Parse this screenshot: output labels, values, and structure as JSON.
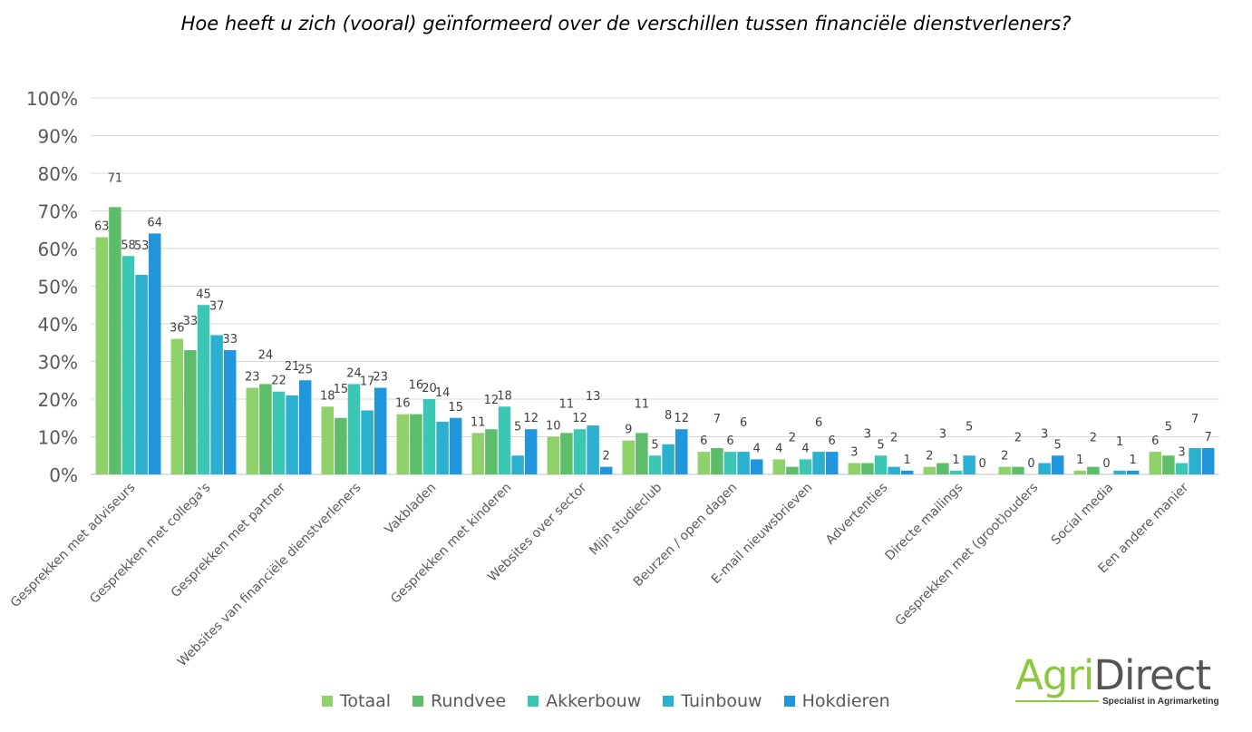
{
  "chart_data": {
    "type": "bar",
    "title": "Hoe heeft u zich (vooral) geïnformeerd over de verschillen tussen financiële dienstverleners?",
    "ylim": [
      0,
      100
    ],
    "y_ticks": [
      "0%",
      "10%",
      "20%",
      "30%",
      "40%",
      "50%",
      "60%",
      "70%",
      "80%",
      "90%",
      "100%"
    ],
    "grid": true,
    "legend_position": "bottom",
    "categories": [
      "Gesprekken met adviseurs",
      "Gesprekken met collega's",
      "Gesprekken met partner",
      "Websites van financiële dienstverleners",
      "Vakbladen",
      "Gesprekken met kinderen",
      "Websites over sector",
      "Mijn studieclub",
      "Beurzen / open dagen",
      "E-mail nieuwsbrieven",
      "Advertenties",
      "Directe mailings",
      "Gesprekken met (groot)ouders",
      "Social media",
      "Een andere manier"
    ],
    "series": [
      {
        "name": "Totaal",
        "color": "#8fd26a",
        "values": [
          63,
          36,
          23,
          18,
          16,
          11,
          10,
          9,
          6,
          4,
          3,
          2,
          2,
          1,
          6
        ]
      },
      {
        "name": "Rundvee",
        "color": "#5dbd6b",
        "values": [
          71,
          33,
          24,
          15,
          16,
          12,
          11,
          11,
          7,
          2,
          3,
          3,
          2,
          2,
          5
        ]
      },
      {
        "name": "Akkerbouw",
        "color": "#3cc6b4",
        "values": [
          58,
          45,
          22,
          24,
          20,
          18,
          12,
          5,
          6,
          4,
          5,
          1,
          0,
          0,
          3
        ]
      },
      {
        "name": "Tuinbouw",
        "color": "#2bb0cf",
        "values": [
          53,
          37,
          21,
          17,
          14,
          5,
          13,
          8,
          6,
          6,
          2,
          5,
          3,
          1,
          7
        ]
      },
      {
        "name": "Hokdieren",
        "color": "#2196dc",
        "values": [
          64,
          33,
          25,
          23,
          15,
          12,
          2,
          12,
          4,
          6,
          1,
          0,
          5,
          1,
          7
        ]
      }
    ]
  },
  "logo": {
    "agri": "Agri",
    "direct": "Direct",
    "tagline": "Specialist in Agrimarketing"
  }
}
